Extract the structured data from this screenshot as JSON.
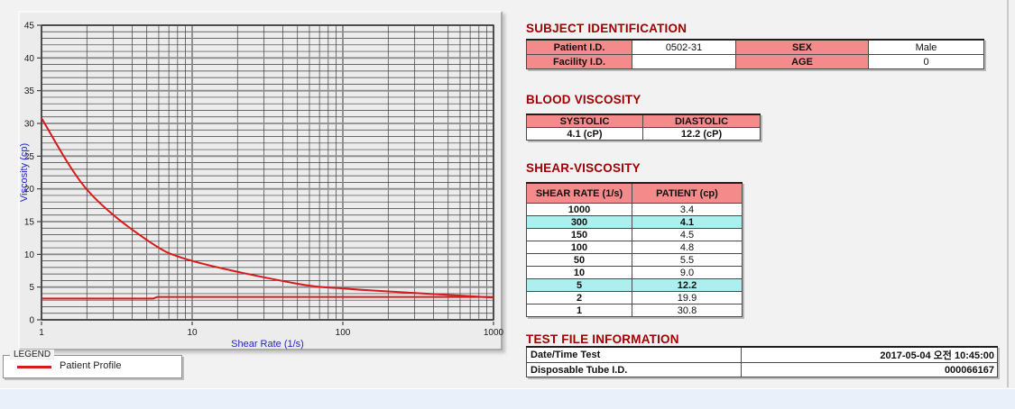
{
  "theme": {
    "page_bg": "#F2F2F2",
    "panel_bg": "#ECECEC",
    "bottom_strip_bg": "#E9F0FA",
    "title_color": "#A00000",
    "table_header_bg": "#F48A8A",
    "highlight_bg": "#ADEFEF",
    "curve_color": "#D81A1A"
  },
  "chart_data": {
    "type": "line",
    "title": "",
    "xlabel": "Shear Rate (1/s)",
    "ylabel": "Viscosity (cp)",
    "x_scale": "log",
    "xlim": [
      1,
      1000
    ],
    "ylim": [
      0,
      45
    ],
    "x_ticks": [
      1,
      10,
      100,
      1000
    ],
    "y_ticks": [
      0,
      5,
      10,
      15,
      20,
      25,
      30,
      35,
      40,
      45
    ],
    "y_minor_step": 1,
    "grid": "major+minor",
    "axis_label_color": "#2424C8",
    "tick_label_color": "#1A1A1A",
    "legend": {
      "title": "LEGEND",
      "position": "bottom-left-groupbox",
      "entries": [
        {
          "label": "Patient Profile",
          "color": "#D81A1A"
        }
      ]
    },
    "series": [
      {
        "name": "Patient Profile",
        "color": "#D81A1A",
        "smooth": true,
        "x": [
          1,
          2,
          5,
          10,
          50,
          100,
          150,
          300,
          1000
        ],
        "y": [
          30.8,
          19.9,
          12.2,
          9.0,
          5.5,
          4.8,
          4.5,
          4.1,
          3.4
        ]
      },
      {
        "name": "baseline-reference",
        "color": "#D81A1A",
        "smooth": false,
        "x": [
          1,
          5.5,
          5.9,
          1000
        ],
        "y": [
          3.25,
          3.25,
          3.5,
          3.5
        ]
      }
    ]
  },
  "subject_identification": {
    "title": "SUBJECT IDENTIFICATION",
    "rows": [
      {
        "label1": "Patient I.D.",
        "value1": "0502-31",
        "label2": "SEX",
        "value2": "Male"
      },
      {
        "label1": "Facility I.D.",
        "value1": "",
        "label2": "AGE",
        "value2": "0"
      }
    ]
  },
  "blood_viscosity": {
    "title": "BLOOD VISCOSITY",
    "headers": [
      "SYSTOLIC",
      "DIASTOLIC"
    ],
    "values": [
      "4.1 (cP)",
      "12.2 (cP)"
    ]
  },
  "shear_viscosity": {
    "title": "SHEAR-VISCOSITY",
    "headers": [
      "SHEAR RATE (1/s)",
      "PATIENT (cp)"
    ],
    "rows": [
      {
        "rate": "1000",
        "value": "3.4",
        "highlight": false
      },
      {
        "rate": "300",
        "value": "4.1",
        "highlight": true
      },
      {
        "rate": "150",
        "value": "4.5",
        "highlight": false
      },
      {
        "rate": "100",
        "value": "4.8",
        "highlight": false
      },
      {
        "rate": "50",
        "value": "5.5",
        "highlight": false
      },
      {
        "rate": "10",
        "value": "9.0",
        "highlight": false
      },
      {
        "rate": "5",
        "value": "12.2",
        "highlight": true
      },
      {
        "rate": "2",
        "value": "19.9",
        "highlight": false
      },
      {
        "rate": "1",
        "value": "30.8",
        "highlight": false
      }
    ]
  },
  "test_file_information": {
    "title": "TEST FILE INFORMATION",
    "rows": [
      {
        "label": "Date/Time Test",
        "value": "2017-05-04  오전 10:45:00"
      },
      {
        "label": "Disposable Tube I.D.",
        "value": "000066167"
      }
    ]
  }
}
